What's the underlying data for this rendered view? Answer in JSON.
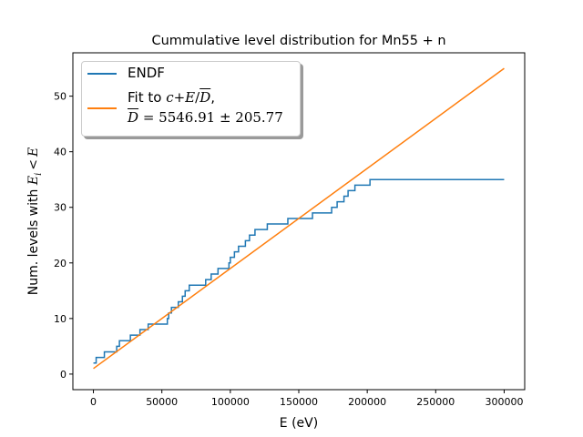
{
  "chart_data": {
    "type": "line",
    "title": "Cummulative level distribution for Mn55 + n",
    "xlabel": "E (eV)",
    "ylabel_prefix": "Num. levels with ",
    "ylabel_math_E": "E",
    "ylabel_math_i": "i",
    "ylabel_math_lt": "<",
    "xlim": [
      -15000,
      315000
    ],
    "ylim": [
      -2.8,
      57.8
    ],
    "xticks": [
      0,
      50000,
      100000,
      150000,
      200000,
      250000,
      300000
    ],
    "xtick_labels": [
      "0",
      "50000",
      "100000",
      "150000",
      "200000",
      "250000",
      "300000"
    ],
    "yticks": [
      0,
      10,
      20,
      30,
      40,
      50
    ],
    "ytick_labels": [
      "0",
      "10",
      "20",
      "30",
      "40",
      "50"
    ],
    "grid": false,
    "legend_position": "upper-left",
    "series": [
      {
        "name": "ENDF",
        "color": "#1f77b4",
        "step": true,
        "x": [
          0,
          1000,
          2000,
          8000,
          17000,
          19000,
          27000,
          34000,
          40000,
          54000,
          55000,
          57000,
          62000,
          65000,
          67000,
          70000,
          82000,
          86000,
          91000,
          99000,
          100000,
          103000,
          106000,
          111000,
          114000,
          118000,
          127000,
          142000,
          160000,
          174000,
          178000,
          183000,
          186000,
          191000,
          202000,
          300000
        ],
        "y": [
          2,
          2,
          3,
          4,
          5,
          6,
          7,
          8,
          9,
          10,
          11,
          12,
          13,
          14,
          15,
          16,
          17,
          18,
          19,
          20,
          21,
          22,
          23,
          24,
          25,
          26,
          27,
          28,
          29,
          30,
          31,
          32,
          33,
          34,
          35,
          35
        ]
      },
      {
        "name": "Fit to c + E/D̄,  D̄ = 5546.91 ± 205.77",
        "color": "#ff7f0e",
        "step": false,
        "x": [
          0,
          300000
        ],
        "y": [
          1,
          55
        ]
      }
    ]
  },
  "legend": {
    "endf_label": "ENDF",
    "fit_line1_prefix": "Fit to ",
    "fit_line1_c": "c",
    "fit_line1_plus": "+",
    "fit_line1_E": "E",
    "fit_line1_slash": "/",
    "fit_line1_D": "D",
    "fit_line1_comma": ",",
    "fit_line2_D": "D",
    "fit_line2_rest": "= 5546.91 ± 205.77"
  }
}
